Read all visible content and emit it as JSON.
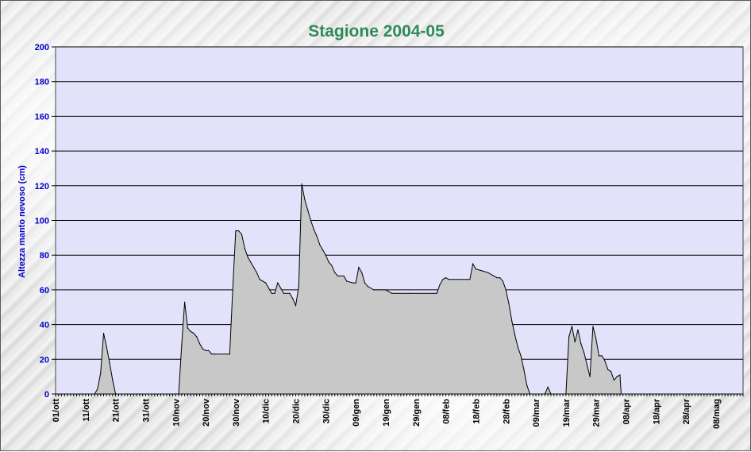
{
  "chart_data": {
    "type": "area",
    "title": "Stagione 2004-05",
    "xlabel": "",
    "ylabel": "Altezza manto nevoso (cm)",
    "ylim": [
      0,
      200
    ],
    "yticks": [
      0,
      20,
      40,
      60,
      80,
      100,
      120,
      140,
      160,
      180,
      200
    ],
    "grid": true,
    "legend": "none",
    "x_start": "01/ott",
    "x_days": 229,
    "x_tick_labels": [
      "01/ott",
      "11/ott",
      "21/ott",
      "31/ott",
      "10/nov",
      "20/nov",
      "30/nov",
      "10/dic",
      "20/dic",
      "30/dic",
      "09/gen",
      "19/gen",
      "29/gen",
      "08/feb",
      "18/feb",
      "28/feb",
      "09/mar",
      "19/mar",
      "29/mar",
      "08/apr",
      "18/apr",
      "28/apr",
      "08/mag"
    ],
    "points": [
      [
        0,
        0
      ],
      [
        13,
        0
      ],
      [
        14,
        3
      ],
      [
        15,
        12
      ],
      [
        16,
        35
      ],
      [
        17,
        27
      ],
      [
        18,
        18
      ],
      [
        19,
        8
      ],
      [
        20,
        0
      ],
      [
        40,
        0
      ],
      [
        41,
        0
      ],
      [
        42,
        28
      ],
      [
        43,
        53
      ],
      [
        44,
        38
      ],
      [
        45,
        36
      ],
      [
        46,
        35
      ],
      [
        47,
        33
      ],
      [
        48,
        29
      ],
      [
        49,
        26
      ],
      [
        50,
        25
      ],
      [
        51,
        25
      ],
      [
        52,
        23
      ],
      [
        53,
        23
      ],
      [
        58,
        23
      ],
      [
        59,
        60
      ],
      [
        60,
        94
      ],
      [
        61,
        94
      ],
      [
        62,
        92
      ],
      [
        63,
        84
      ],
      [
        64,
        79
      ],
      [
        65,
        76
      ],
      [
        66,
        73
      ],
      [
        67,
        70
      ],
      [
        68,
        66
      ],
      [
        69,
        65
      ],
      [
        70,
        64
      ],
      [
        71,
        61
      ],
      [
        72,
        58
      ],
      [
        73,
        58
      ],
      [
        74,
        64
      ],
      [
        75,
        61
      ],
      [
        76,
        58
      ],
      [
        78,
        58
      ],
      [
        79,
        55
      ],
      [
        80,
        51
      ],
      [
        81,
        62
      ],
      [
        82,
        121
      ],
      [
        83,
        112
      ],
      [
        84,
        106
      ],
      [
        85,
        100
      ],
      [
        86,
        95
      ],
      [
        87,
        91
      ],
      [
        88,
        86
      ],
      [
        89,
        83
      ],
      [
        90,
        80
      ],
      [
        91,
        76
      ],
      [
        92,
        74
      ],
      [
        93,
        70
      ],
      [
        94,
        68
      ],
      [
        96,
        68
      ],
      [
        97,
        65
      ],
      [
        99,
        64
      ],
      [
        100,
        64
      ],
      [
        101,
        73
      ],
      [
        102,
        70
      ],
      [
        103,
        64
      ],
      [
        104,
        62
      ],
      [
        106,
        60
      ],
      [
        110,
        60
      ],
      [
        112,
        58
      ],
      [
        114,
        58
      ],
      [
        118,
        58
      ],
      [
        126,
        58
      ],
      [
        127,
        58
      ],
      [
        128,
        63
      ],
      [
        129,
        66
      ],
      [
        130,
        67
      ],
      [
        131,
        66
      ],
      [
        138,
        66
      ],
      [
        139,
        75
      ],
      [
        140,
        72
      ],
      [
        142,
        71
      ],
      [
        144,
        70
      ],
      [
        146,
        68
      ],
      [
        147,
        67
      ],
      [
        148,
        67
      ],
      [
        149,
        65
      ],
      [
        150,
        60
      ],
      [
        151,
        52
      ],
      [
        152,
        42
      ],
      [
        153,
        34
      ],
      [
        154,
        27
      ],
      [
        155,
        22
      ],
      [
        156,
        14
      ],
      [
        157,
        5
      ],
      [
        158,
        0
      ],
      [
        163,
        0
      ],
      [
        164,
        4
      ],
      [
        165,
        0
      ],
      [
        170,
        0
      ],
      [
        171,
        33
      ],
      [
        172,
        39
      ],
      [
        173,
        30
      ],
      [
        174,
        37
      ],
      [
        175,
        29
      ],
      [
        176,
        24
      ],
      [
        177,
        17
      ],
      [
        178,
        10
      ],
      [
        179,
        39
      ],
      [
        180,
        32
      ],
      [
        181,
        22
      ],
      [
        182,
        22
      ],
      [
        183,
        19
      ],
      [
        184,
        14
      ],
      [
        185,
        13
      ],
      [
        186,
        8
      ],
      [
        187,
        10
      ],
      [
        188,
        11
      ],
      [
        188.4,
        0
      ],
      [
        229,
        0
      ]
    ]
  }
}
